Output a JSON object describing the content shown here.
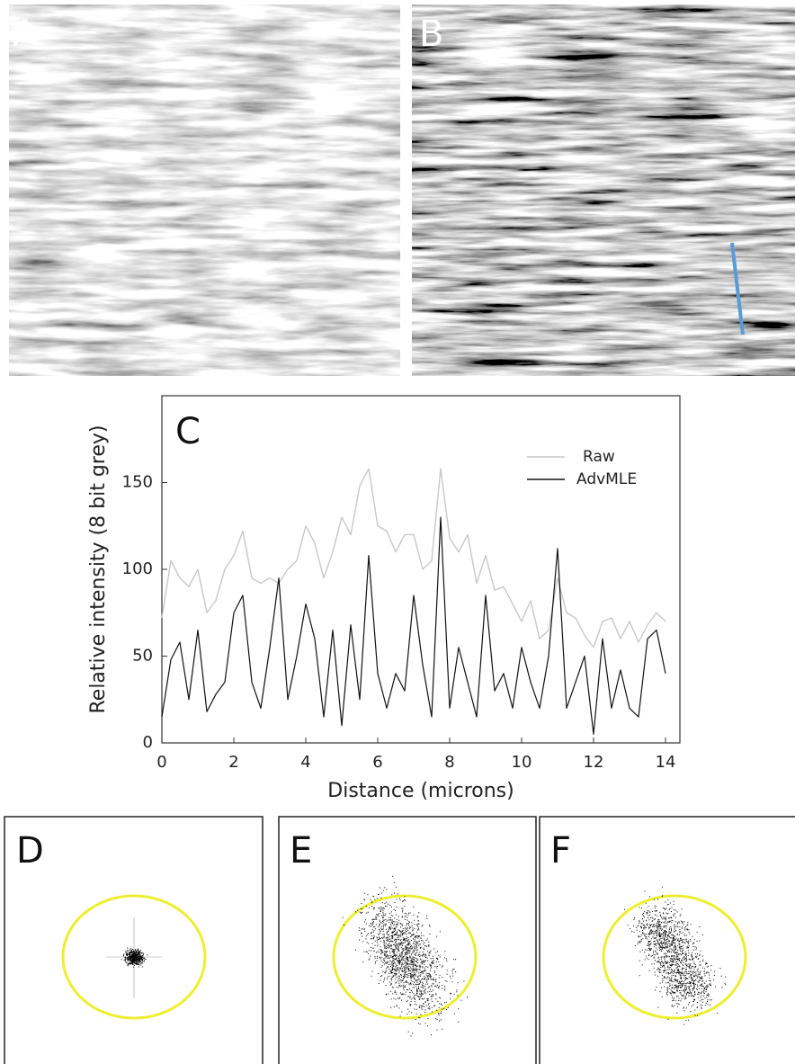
{
  "panel_labels": [
    "A",
    "B",
    "C",
    "D",
    "E",
    "F"
  ],
  "chart_data": {
    "type": "line",
    "xlabel": "Distance (microns)",
    "ylabel": "Relative intensity (8 bit grey)",
    "x": [
      0,
      0.25,
      0.5,
      0.75,
      1,
      1.25,
      1.5,
      1.75,
      2,
      2.25,
      2.5,
      2.75,
      3,
      3.25,
      3.5,
      3.75,
      4,
      4.25,
      4.5,
      4.75,
      5,
      5.25,
      5.5,
      5.75,
      6,
      6.25,
      6.5,
      6.75,
      7,
      7.25,
      7.5,
      7.75,
      8,
      8.25,
      8.5,
      8.75,
      9,
      9.25,
      9.5,
      9.75,
      10,
      10.25,
      10.5,
      10.75,
      11,
      11.25,
      11.5,
      11.75,
      12,
      12.25,
      12.5,
      12.75,
      13,
      13.25,
      13.5,
      13.75,
      14
    ],
    "series": [
      {
        "name": "Raw",
        "color": "#c8c8c8",
        "values": [
          72,
          105,
          95,
          90,
          100,
          75,
          82,
          100,
          108,
          122,
          95,
          92,
          95,
          92,
          100,
          105,
          125,
          115,
          95,
          110,
          130,
          120,
          148,
          158,
          125,
          122,
          110,
          120,
          120,
          100,
          105,
          158,
          118,
          110,
          120,
          92,
          108,
          88,
          90,
          80,
          70,
          82,
          60,
          65,
          95,
          75,
          72,
          62,
          55,
          70,
          72,
          60,
          70,
          58,
          68,
          75,
          70
        ]
      },
      {
        "name": "AdvMLE",
        "color": "#111111",
        "values": [
          15,
          48,
          58,
          25,
          65,
          18,
          28,
          35,
          75,
          85,
          35,
          20,
          55,
          95,
          25,
          50,
          80,
          60,
          15,
          65,
          10,
          68,
          25,
          108,
          40,
          20,
          40,
          30,
          85,
          45,
          15,
          130,
          20,
          55,
          35,
          15,
          85,
          30,
          40,
          20,
          55,
          35,
          20,
          50,
          112,
          20,
          35,
          50,
          5,
          60,
          20,
          42,
          20,
          15,
          60,
          65,
          40
        ]
      }
    ],
    "xlim": [
      0,
      14.4
    ],
    "ylim": [
      0,
      200
    ],
    "xticks": [
      0,
      2,
      4,
      6,
      8,
      10,
      12,
      14
    ],
    "yticks": [
      0,
      50,
      100,
      150
    ],
    "legend": "upper right"
  }
}
